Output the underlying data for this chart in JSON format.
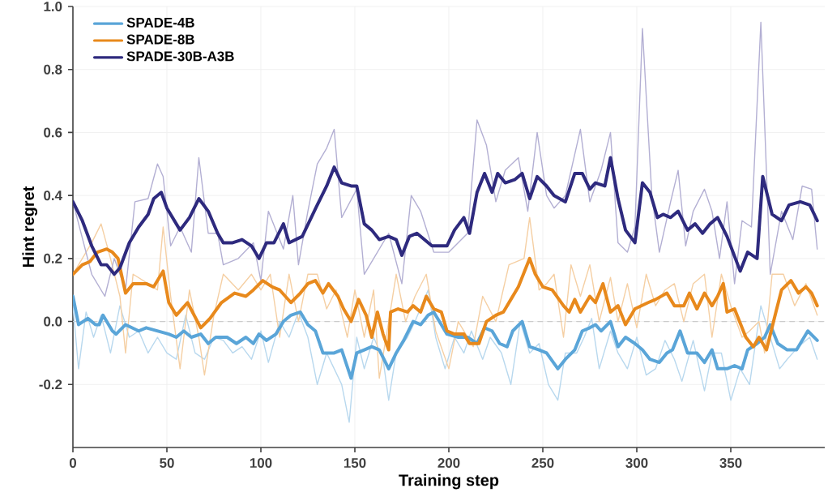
{
  "chart_data": {
    "type": "line",
    "xlabel": "Training step",
    "ylabel": "Hint regret",
    "xlim": [
      0,
      400
    ],
    "xticks": [
      0,
      50,
      100,
      150,
      200,
      250,
      300,
      350
    ],
    "ylim": [
      -0.4,
      1.0
    ],
    "yticks": [
      -0.2,
      {
        "value": 0,
        "label": "0.0"
      },
      0.2,
      0.4,
      0.6,
      0.8,
      {
        "value": 1,
        "label": "1.0"
      }
    ],
    "grid": true,
    "legend": "top left",
    "line_style": "solid",
    "ref_lines": [
      {
        "axis": "y",
        "value": 0,
        "color": "#cccccc",
        "line_style": "dashed"
      }
    ],
    "series": [
      {
        "color": "#b8d8ee",
        "x": [
          0,
          3,
          7,
          11,
          15,
          20,
          25,
          30,
          35,
          40,
          45,
          50,
          55,
          60,
          65,
          70,
          75,
          80,
          85,
          90,
          95,
          100,
          104,
          110,
          115,
          120,
          125,
          130,
          135,
          139,
          143,
          147,
          151,
          155,
          160,
          165,
          168,
          172,
          178,
          182,
          189,
          193,
          198,
          203,
          208,
          212,
          218,
          222,
          228,
          233,
          238,
          243,
          248,
          253,
          258,
          262,
          268,
          272,
          276,
          280,
          286,
          290,
          295,
          300,
          305,
          310,
          315,
          320,
          324,
          330,
          336,
          340,
          345,
          350,
          355,
          360,
          366,
          371,
          376,
          380,
          386,
          392,
          396
        ],
        "values": [
          0.05,
          -0.15,
          0.03,
          -0.05,
          0.02,
          -0.1,
          0.05,
          -0.05,
          -0.03,
          -0.1,
          -0.05,
          -0.1,
          -0.12,
          0.02,
          -0.1,
          -0.12,
          -0.05,
          -0.06,
          -0.1,
          -0.08,
          -0.12,
          -0.03,
          -0.13,
          0.0,
          -0.05,
          0.03,
          -0.05,
          -0.2,
          -0.1,
          -0.15,
          -0.2,
          -0.32,
          -0.05,
          -0.15,
          -0.05,
          -0.12,
          -0.25,
          -0.1,
          -0.05,
          0.0,
          0.1,
          -0.05,
          -0.15,
          -0.05,
          -0.1,
          -0.03,
          -0.12,
          -0.05,
          -0.1,
          -0.2,
          0.0,
          -0.1,
          -0.07,
          -0.2,
          -0.25,
          -0.1,
          -0.1,
          -0.05,
          0.01,
          -0.15,
          -0.03,
          -0.1,
          -0.15,
          -0.05,
          -0.17,
          -0.15,
          -0.06,
          -0.12,
          -0.19,
          -0.06,
          -0.22,
          -0.1,
          -0.1,
          -0.25,
          -0.15,
          -0.2,
          0.05,
          -0.05,
          -0.15,
          -0.12,
          -0.08,
          -0.05,
          -0.12
        ]
      },
      {
        "color": "#f5cfa3",
        "x": [
          0,
          5,
          10,
          15,
          20,
          25,
          28,
          32,
          40,
          45,
          48,
          52,
          57,
          62,
          67,
          70,
          75,
          80,
          88,
          95,
          100,
          105,
          110,
          115,
          120,
          125,
          130,
          135,
          140,
          146,
          150,
          155,
          160,
          163,
          168,
          172,
          177,
          182,
          188,
          193,
          200,
          205,
          213,
          218,
          225,
          232,
          240,
          243,
          248,
          252,
          256,
          261,
          265,
          270,
          275,
          280,
          286,
          290,
          295,
          300,
          305,
          310,
          315,
          320,
          325,
          330,
          336,
          340,
          345,
          350,
          356,
          360,
          365,
          368,
          372,
          378,
          384,
          390,
          396
        ],
        "values": [
          0.15,
          0.2,
          0.25,
          0.31,
          0.2,
          0.08,
          -0.1,
          0.15,
          0.12,
          0.1,
          0.3,
          0.08,
          -0.15,
          0.1,
          -0.05,
          -0.17,
          0.02,
          0.15,
          0.1,
          0.15,
          0.1,
          0.15,
          -0.05,
          0.15,
          0.0,
          0.15,
          0.15,
          0.04,
          0.1,
          -0.05,
          0.1,
          -0.05,
          0.1,
          -0.18,
          0.0,
          0.15,
          0.0,
          0.08,
          0.15,
          -0.03,
          -0.15,
          0.0,
          -0.08,
          0.08,
          0.0,
          0.18,
          0.2,
          0.33,
          0.1,
          0.12,
          0.15,
          -0.05,
          0.18,
          0.08,
          0.18,
          0.0,
          0.14,
          0.0,
          0.12,
          -0.02,
          0.15,
          0.05,
          0.1,
          0.12,
          0.0,
          0.12,
          0.15,
          -0.05,
          0.15,
          0.05,
          -0.05,
          -0.03,
          0.0,
          -0.1,
          0.15,
          0.15,
          0.05,
          0.12,
          0.02
        ]
      },
      {
        "color": "#b3afd3",
        "x": [
          0,
          10,
          17,
          22,
          28,
          33,
          40,
          45,
          48,
          52,
          57,
          63,
          67,
          72,
          77,
          80,
          88,
          96,
          100,
          104,
          112,
          117,
          120,
          125,
          130,
          135,
          139,
          143,
          151,
          155,
          160,
          168,
          175,
          180,
          185,
          192,
          200,
          210,
          215,
          220,
          225,
          230,
          237,
          242,
          247,
          252,
          256,
          262,
          270,
          275,
          281,
          286,
          290,
          295,
          299,
          303,
          308,
          312,
          318,
          322,
          326,
          330,
          336,
          340,
          344,
          348,
          352,
          356,
          361,
          366,
          371,
          377,
          383,
          388,
          393,
          396
        ],
        "values": [
          0.38,
          0.15,
          0.08,
          0.2,
          0.1,
          0.38,
          0.39,
          0.5,
          0.46,
          0.24,
          0.3,
          0.22,
          0.52,
          0.28,
          0.28,
          0.18,
          0.2,
          0.25,
          0.13,
          0.35,
          0.23,
          0.4,
          0.18,
          0.35,
          0.5,
          0.55,
          0.61,
          0.33,
          0.42,
          0.15,
          0.2,
          0.28,
          0.12,
          0.4,
          0.35,
          0.22,
          0.22,
          0.28,
          0.64,
          0.56,
          0.38,
          0.48,
          0.52,
          0.35,
          0.6,
          0.4,
          0.36,
          0.4,
          0.61,
          0.38,
          0.48,
          0.6,
          0.25,
          0.22,
          0.3,
          0.93,
          0.4,
          0.22,
          0.38,
          0.48,
          0.24,
          0.35,
          0.42,
          0.35,
          0.2,
          0.38,
          0.12,
          0.32,
          0.3,
          0.95,
          0.15,
          0.35,
          0.26,
          0.43,
          0.42,
          0.23
        ]
      },
      {
        "name": "SPADE-4B",
        "color": "#5aa5d8",
        "x": [
          0,
          3,
          8,
          12,
          14,
          16,
          21,
          23,
          28,
          35,
          39,
          45,
          51,
          55,
          59,
          63,
          68,
          72,
          76,
          82,
          87,
          92,
          96,
          99,
          103,
          108,
          112,
          116,
          121,
          125,
          129,
          133,
          139,
          143,
          148,
          151,
          155,
          159,
          163,
          168,
          172,
          176,
          181,
          185,
          189,
          192,
          196,
          199,
          205,
          210,
          215,
          219,
          223,
          227,
          231,
          234,
          239,
          243,
          248,
          252,
          258,
          262,
          267,
          271,
          275,
          278,
          281,
          286,
          290,
          294,
          299,
          303,
          307,
          312,
          316,
          319,
          323,
          327,
          332,
          336,
          340,
          343,
          348,
          352,
          356,
          359,
          364,
          368,
          371,
          375,
          380,
          385,
          391,
          396
        ],
        "values": [
          0.08,
          -0.01,
          0.01,
          -0.01,
          -0.01,
          0.02,
          -0.03,
          -0.04,
          -0.01,
          -0.03,
          -0.02,
          -0.03,
          -0.04,
          -0.05,
          -0.03,
          -0.05,
          -0.04,
          -0.07,
          -0.05,
          -0.05,
          -0.07,
          -0.05,
          -0.07,
          -0.04,
          -0.06,
          -0.04,
          0.0,
          0.02,
          0.03,
          -0.01,
          -0.03,
          -0.1,
          -0.1,
          -0.09,
          -0.18,
          -0.1,
          -0.09,
          -0.08,
          -0.09,
          -0.15,
          -0.1,
          -0.06,
          0.0,
          -0.01,
          0.02,
          0.03,
          -0.01,
          -0.04,
          -0.05,
          -0.05,
          -0.07,
          -0.02,
          -0.03,
          -0.07,
          -0.08,
          -0.03,
          0.0,
          -0.08,
          -0.09,
          -0.1,
          -0.15,
          -0.12,
          -0.09,
          -0.03,
          -0.02,
          -0.01,
          -0.03,
          0.0,
          -0.08,
          -0.05,
          -0.07,
          -0.09,
          -0.12,
          -0.13,
          -0.1,
          -0.09,
          -0.03,
          -0.1,
          -0.1,
          -0.13,
          -0.09,
          -0.15,
          -0.15,
          -0.14,
          -0.15,
          -0.09,
          -0.07,
          -0.05,
          -0.01,
          -0.07,
          -0.09,
          -0.09,
          -0.03,
          -0.06
        ]
      },
      {
        "name": "SPADE-8B",
        "color": "#e8891c",
        "x": [
          0,
          5,
          9,
          13,
          18,
          21,
          24,
          28,
          32,
          39,
          43,
          48,
          51,
          55,
          61,
          68,
          73,
          79,
          86,
          92,
          96,
          101,
          106,
          110,
          116,
          121,
          125,
          129,
          133,
          136,
          141,
          144,
          148,
          152,
          156,
          159,
          162,
          165,
          168,
          169,
          173,
          178,
          181,
          185,
          188,
          192,
          196,
          199,
          203,
          208,
          211,
          216,
          220,
          225,
          229,
          233,
          237,
          243,
          246,
          250,
          255,
          261,
          264,
          267,
          270,
          275,
          278,
          282,
          286,
          290,
          294,
          299,
          306,
          310,
          316,
          320,
          325,
          328,
          332,
          336,
          340,
          343,
          346,
          348,
          352,
          358,
          362,
          365,
          369,
          374,
          377,
          382,
          386,
          390,
          393,
          396
        ],
        "values": [
          0.15,
          0.18,
          0.19,
          0.22,
          0.23,
          0.22,
          0.2,
          0.09,
          0.12,
          0.12,
          0.11,
          0.16,
          0.06,
          0.02,
          0.06,
          -0.02,
          0.01,
          0.06,
          0.09,
          0.08,
          0.1,
          0.13,
          0.11,
          0.1,
          0.06,
          0.09,
          0.12,
          0.13,
          0.09,
          0.12,
          0.08,
          0.04,
          0.0,
          0.07,
          0.02,
          -0.05,
          0.03,
          -0.04,
          -0.09,
          0.03,
          0.04,
          0.03,
          0.05,
          0.03,
          0.08,
          0.04,
          0.03,
          -0.03,
          -0.04,
          -0.04,
          -0.07,
          -0.07,
          0.0,
          0.02,
          0.03,
          0.07,
          0.11,
          0.2,
          0.15,
          0.11,
          0.1,
          0.05,
          0.03,
          0.07,
          0.03,
          0.08,
          0.06,
          0.12,
          0.03,
          0.05,
          -0.01,
          0.04,
          0.06,
          0.07,
          0.09,
          0.05,
          0.05,
          0.09,
          0.04,
          0.09,
          0.05,
          0.08,
          0.12,
          0.03,
          0.04,
          -0.05,
          -0.08,
          -0.05,
          -0.09,
          0.03,
          0.1,
          0.13,
          0.09,
          0.11,
          0.09,
          0.05
        ]
      },
      {
        "name": "SPADE-30B-A3B",
        "color": "#2e2a7e",
        "x": [
          0,
          5,
          10,
          15,
          18,
          22,
          25,
          30,
          35,
          40,
          43,
          47,
          50,
          57,
          62,
          67,
          72,
          77,
          80,
          85,
          90,
          95,
          99,
          103,
          107,
          112,
          115,
          122,
          130,
          135,
          139,
          143,
          148,
          151,
          155,
          159,
          163,
          168,
          172,
          175,
          179,
          183,
          191,
          199,
          203,
          208,
          211,
          215,
          219,
          223,
          226,
          230,
          235,
          239,
          243,
          247,
          252,
          256,
          262,
          267,
          271,
          275,
          278,
          283,
          286,
          290,
          294,
          299,
          303,
          307,
          311,
          314,
          318,
          322,
          327,
          331,
          335,
          339,
          343,
          348,
          355,
          359,
          364,
          367,
          372,
          377,
          381,
          387,
          392,
          396
        ],
        "values": [
          0.38,
          0.32,
          0.24,
          0.18,
          0.18,
          0.15,
          0.17,
          0.25,
          0.3,
          0.34,
          0.39,
          0.41,
          0.36,
          0.29,
          0.33,
          0.39,
          0.35,
          0.28,
          0.25,
          0.25,
          0.26,
          0.24,
          0.2,
          0.25,
          0.25,
          0.31,
          0.25,
          0.27,
          0.37,
          0.43,
          0.49,
          0.44,
          0.43,
          0.43,
          0.31,
          0.29,
          0.26,
          0.27,
          0.26,
          0.21,
          0.27,
          0.28,
          0.24,
          0.24,
          0.29,
          0.33,
          0.28,
          0.41,
          0.47,
          0.41,
          0.47,
          0.44,
          0.45,
          0.47,
          0.39,
          0.46,
          0.43,
          0.4,
          0.38,
          0.47,
          0.47,
          0.42,
          0.44,
          0.43,
          0.52,
          0.39,
          0.29,
          0.25,
          0.44,
          0.41,
          0.33,
          0.34,
          0.33,
          0.35,
          0.29,
          0.31,
          0.28,
          0.31,
          0.33,
          0.27,
          0.16,
          0.22,
          0.2,
          0.46,
          0.34,
          0.32,
          0.37,
          0.38,
          0.37,
          0.32
        ]
      }
    ]
  }
}
